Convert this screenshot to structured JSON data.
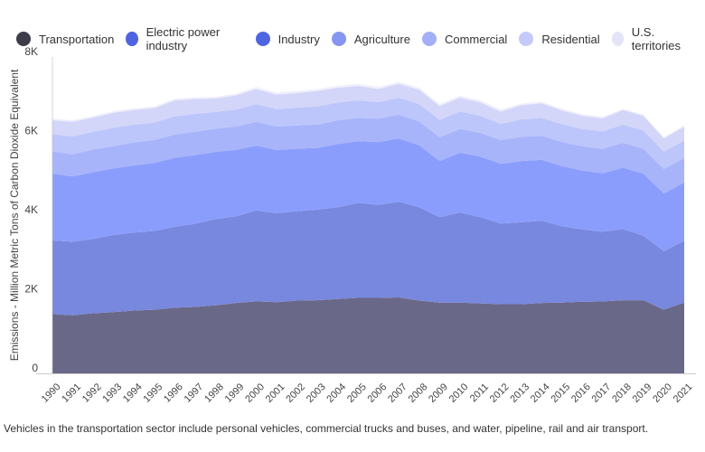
{
  "chart_data": {
    "type": "area",
    "stacked": true,
    "ylabel": "Emissions - Million Metric Tons of Carbon Dioxide Equivalent",
    "ylim": [
      0,
      8000
    ],
    "yticks": [
      {
        "v": 0,
        "label": "0"
      },
      {
        "v": 2000,
        "label": "2K"
      },
      {
        "v": 4000,
        "label": "4K"
      },
      {
        "v": 6000,
        "label": "6K"
      },
      {
        "v": 8000,
        "label": "8K"
      }
    ],
    "grid": false,
    "legend_position": "top",
    "x": [
      1990,
      1991,
      1992,
      1993,
      1994,
      1995,
      1996,
      1997,
      1998,
      1999,
      2000,
      2001,
      2002,
      2003,
      2004,
      2005,
      2006,
      2007,
      2008,
      2009,
      2010,
      2011,
      2012,
      2013,
      2014,
      2015,
      2016,
      2017,
      2018,
      2019,
      2020,
      2021
    ],
    "series": [
      {
        "name": "Transportation",
        "color": "#6a6888",
        "legend_color": "#3d3c4a",
        "values": [
          1500,
          1470,
          1520,
          1550,
          1590,
          1610,
          1660,
          1680,
          1720,
          1780,
          1820,
          1800,
          1840,
          1850,
          1880,
          1910,
          1910,
          1920,
          1840,
          1790,
          1790,
          1770,
          1750,
          1750,
          1780,
          1790,
          1810,
          1820,
          1850,
          1850,
          1610,
          1790
        ]
      },
      {
        "name": "Electric power industry",
        "color": "#7888de",
        "legend_color": "#4f64e0",
        "values": [
          1860,
          1860,
          1880,
          1950,
          1970,
          1990,
          2050,
          2100,
          2180,
          2190,
          2300,
          2250,
          2260,
          2290,
          2320,
          2400,
          2350,
          2420,
          2360,
          2160,
          2280,
          2180,
          2040,
          2070,
          2080,
          1930,
          1830,
          1760,
          1800,
          1630,
          1480,
          1560
        ]
      },
      {
        "name": "Industry",
        "color": "#8b9dfc",
        "legend_color": "#4f64e0",
        "values": [
          1690,
          1650,
          1690,
          1680,
          1700,
          1720,
          1740,
          1740,
          1700,
          1680,
          1640,
          1600,
          1580,
          1560,
          1600,
          1560,
          1590,
          1600,
          1570,
          1420,
          1510,
          1530,
          1510,
          1550,
          1540,
          1520,
          1490,
          1480,
          1550,
          1570,
          1460,
          1480
        ]
      },
      {
        "name": "Agriculture",
        "color": "#a7b4fa",
        "legend_color": "#8595f0",
        "values": [
          560,
          560,
          570,
          570,
          580,
          580,
          590,
          590,
          590,
          590,
          600,
          590,
          590,
          590,
          600,
          590,
          590,
          600,
          600,
          600,
          600,
          600,
          600,
          610,
          610,
          610,
          610,
          620,
          630,
          630,
          620,
          620
        ]
      },
      {
        "name": "Commercial",
        "color": "#bdc6fb",
        "legend_color": "#a3b0f7",
        "values": [
          440,
          450,
          450,
          460,
          450,
          440,
          460,
          450,
          420,
          430,
          450,
          440,
          450,
          460,
          450,
          440,
          420,
          430,
          440,
          440,
          440,
          430,
          410,
          440,
          450,
          450,
          440,
          440,
          460,
          460,
          440,
          440
        ]
      },
      {
        "name": "Residential",
        "color": "#d3d6f9",
        "legend_color": "#c4caf9",
        "values": [
          350,
          370,
          360,
          380,
          370,
          370,
          400,
          380,
          340,
          360,
          380,
          370,
          370,
          390,
          370,
          370,
          330,
          350,
          360,
          350,
          350,
          340,
          310,
          360,
          370,
          350,
          330,
          330,
          370,
          370,
          330,
          350
        ]
      },
      {
        "name": "U.S. territories",
        "color": "#eeeefc",
        "legend_color": "#e4e4f8",
        "values": [
          40,
          40,
          40,
          40,
          40,
          40,
          40,
          40,
          40,
          40,
          50,
          50,
          50,
          50,
          50,
          50,
          50,
          50,
          50,
          50,
          50,
          50,
          50,
          40,
          40,
          40,
          40,
          40,
          30,
          30,
          30,
          30
        ]
      }
    ]
  },
  "footnote": "Vehicles in the transportation sector include personal vehicles, commercial trucks and buses, and water, pipeline, rail and air transport."
}
